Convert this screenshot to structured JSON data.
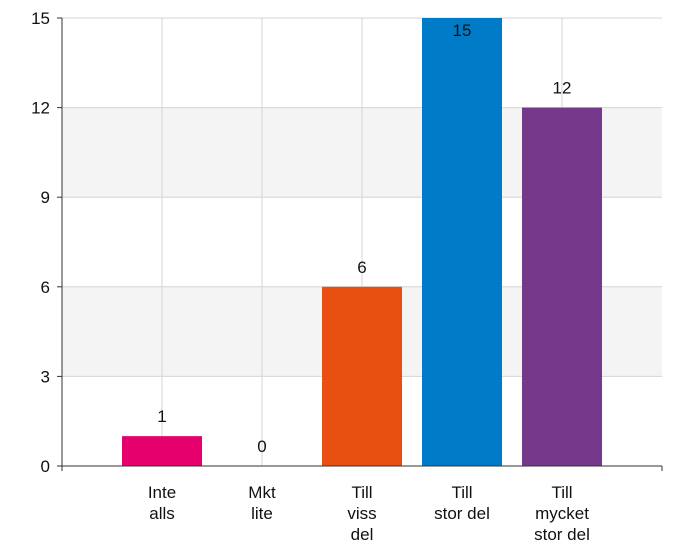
{
  "chart_data": {
    "type": "bar",
    "categories": [
      [
        "Inte",
        "alls"
      ],
      [
        "Mkt",
        "lite"
      ],
      [
        "Till",
        "viss",
        "del"
      ],
      [
        "Till",
        "stor del"
      ],
      [
        "Till",
        "mycket",
        "stor del"
      ]
    ],
    "values": [
      1,
      0,
      6,
      15,
      12
    ],
    "colors": [
      "#e6006e",
      "#999999",
      "#e85012",
      "#007bc7",
      "#76388a"
    ],
    "ylim": [
      0,
      15
    ],
    "yticks": [
      0,
      3,
      6,
      9,
      12,
      15
    ],
    "grid": true
  }
}
